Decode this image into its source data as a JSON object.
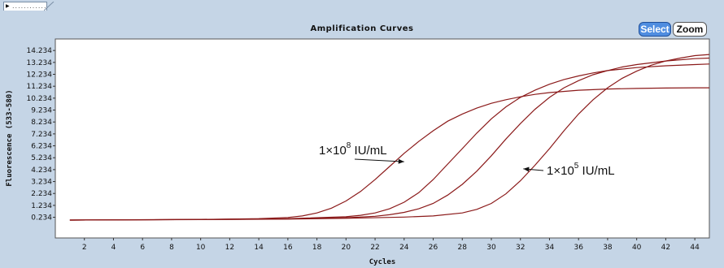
{
  "chart_data": {
    "type": "line",
    "title": "Amplification Curves",
    "xlabel": "Cycles",
    "ylabel": "Fluorescence (533-580)",
    "xlim": [
      0,
      45
    ],
    "ylim": [
      -1.5,
      15.2
    ],
    "x_ticks": [
      2,
      4,
      6,
      8,
      10,
      12,
      14,
      16,
      18,
      20,
      22,
      24,
      26,
      28,
      30,
      32,
      34,
      36,
      38,
      40,
      42,
      44
    ],
    "y_ticks": [
      0.234,
      1.234,
      2.234,
      3.234,
      4.234,
      5.234,
      6.234,
      7.234,
      8.234,
      9.234,
      10.234,
      11.234,
      12.234,
      13.234,
      14.234
    ],
    "y_tick_labels": [
      "0.234",
      "1.234",
      "2.234",
      "3.234",
      "4.234",
      "5.234",
      "6.234",
      "7.234",
      "8.234",
      "9.234",
      "10.234",
      "11.234",
      "12.234",
      "13.234",
      "14.234"
    ],
    "grid": false,
    "line_color": "#8b1a1a",
    "series": [
      {
        "x": [
          1,
          5,
          10,
          14,
          16,
          17,
          18,
          19,
          20,
          21,
          22,
          23,
          24,
          25,
          26,
          27,
          28,
          29,
          30,
          31,
          32,
          33,
          34,
          36,
          38,
          40,
          42,
          44,
          45
        ],
        "y": [
          0,
          0.02,
          0.05,
          0.12,
          0.22,
          0.35,
          0.6,
          1.0,
          1.6,
          2.4,
          3.4,
          4.5,
          5.6,
          6.6,
          7.5,
          8.3,
          8.9,
          9.4,
          9.8,
          10.1,
          10.35,
          10.55,
          10.7,
          10.9,
          11.0,
          11.05,
          11.08,
          11.1,
          11.1
        ]
      },
      {
        "x": [
          1,
          5,
          10,
          16,
          20,
          21,
          22,
          23,
          24,
          25,
          26,
          27,
          28,
          29,
          30,
          31,
          32,
          33,
          34,
          35,
          36,
          37,
          38,
          40,
          42,
          44,
          45
        ],
        "y": [
          0,
          0.03,
          0.06,
          0.12,
          0.28,
          0.4,
          0.6,
          0.95,
          1.5,
          2.3,
          3.4,
          4.7,
          6.0,
          7.3,
          8.5,
          9.5,
          10.3,
          10.9,
          11.4,
          11.8,
          12.1,
          12.35,
          12.55,
          12.8,
          12.95,
          13.05,
          13.1
        ]
      },
      {
        "x": [
          1,
          5,
          10,
          16,
          20,
          22,
          23,
          24,
          25,
          26,
          27,
          28,
          29,
          30,
          31,
          32,
          33,
          34,
          35,
          36,
          37,
          38,
          39,
          40,
          42,
          44,
          45
        ],
        "y": [
          0,
          0.02,
          0.05,
          0.1,
          0.2,
          0.32,
          0.45,
          0.65,
          0.95,
          1.4,
          2.1,
          3.0,
          4.1,
          5.4,
          6.8,
          8.1,
          9.3,
          10.3,
          11.1,
          11.7,
          12.2,
          12.55,
          12.85,
          13.05,
          13.35,
          13.55,
          13.6
        ]
      },
      {
        "x": [
          1,
          5,
          10,
          16,
          20,
          24,
          26,
          28,
          29,
          30,
          31,
          32,
          33,
          34,
          35,
          36,
          37,
          38,
          39,
          40,
          41,
          42,
          43,
          44,
          45
        ],
        "y": [
          0,
          0.02,
          0.04,
          0.08,
          0.15,
          0.25,
          0.35,
          0.6,
          0.9,
          1.4,
          2.2,
          3.3,
          4.6,
          6.0,
          7.5,
          8.9,
          10.1,
          11.1,
          11.9,
          12.5,
          13.0,
          13.35,
          13.6,
          13.8,
          13.9
        ]
      }
    ],
    "annotations": [
      {
        "base": "1×10",
        "exp": "8",
        "unit": " IU/mL",
        "arrow_to": [
          24,
          4.9
        ]
      },
      {
        "base": "1×10",
        "exp": "5",
        "unit": " IU/mL",
        "arrow_to": [
          32.2,
          4.3
        ]
      }
    ]
  },
  "buttons": {
    "select_label": "Select",
    "zoom_label": "Zoom"
  }
}
